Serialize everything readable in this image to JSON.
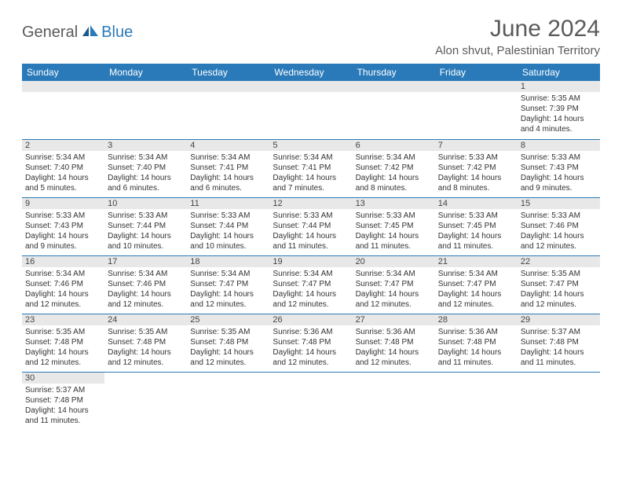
{
  "logo": {
    "general": "General",
    "blue": "Blue"
  },
  "title": "June 2024",
  "location": "Alon shvut, Palestinian Territory",
  "colors": {
    "header_bg": "#2a7ab9",
    "header_text": "#ffffff",
    "num_bar_bg": "#e8e8e8",
    "divider": "#2a7ab9",
    "empty_bg": "#f0f0f0",
    "text": "#333333",
    "title_text": "#5a5a5a"
  },
  "daysOfWeek": [
    "Sunday",
    "Monday",
    "Tuesday",
    "Wednesday",
    "Thursday",
    "Friday",
    "Saturday"
  ],
  "weeks": [
    [
      null,
      null,
      null,
      null,
      null,
      null,
      {
        "n": "1",
        "sr": "Sunrise: 5:35 AM",
        "ss": "Sunset: 7:39 PM",
        "dl": "Daylight: 14 hours and 4 minutes."
      }
    ],
    [
      {
        "n": "2",
        "sr": "Sunrise: 5:34 AM",
        "ss": "Sunset: 7:40 PM",
        "dl": "Daylight: 14 hours and 5 minutes."
      },
      {
        "n": "3",
        "sr": "Sunrise: 5:34 AM",
        "ss": "Sunset: 7:40 PM",
        "dl": "Daylight: 14 hours and 6 minutes."
      },
      {
        "n": "4",
        "sr": "Sunrise: 5:34 AM",
        "ss": "Sunset: 7:41 PM",
        "dl": "Daylight: 14 hours and 6 minutes."
      },
      {
        "n": "5",
        "sr": "Sunrise: 5:34 AM",
        "ss": "Sunset: 7:41 PM",
        "dl": "Daylight: 14 hours and 7 minutes."
      },
      {
        "n": "6",
        "sr": "Sunrise: 5:34 AM",
        "ss": "Sunset: 7:42 PM",
        "dl": "Daylight: 14 hours and 8 minutes."
      },
      {
        "n": "7",
        "sr": "Sunrise: 5:33 AM",
        "ss": "Sunset: 7:42 PM",
        "dl": "Daylight: 14 hours and 8 minutes."
      },
      {
        "n": "8",
        "sr": "Sunrise: 5:33 AM",
        "ss": "Sunset: 7:43 PM",
        "dl": "Daylight: 14 hours and 9 minutes."
      }
    ],
    [
      {
        "n": "9",
        "sr": "Sunrise: 5:33 AM",
        "ss": "Sunset: 7:43 PM",
        "dl": "Daylight: 14 hours and 9 minutes."
      },
      {
        "n": "10",
        "sr": "Sunrise: 5:33 AM",
        "ss": "Sunset: 7:44 PM",
        "dl": "Daylight: 14 hours and 10 minutes."
      },
      {
        "n": "11",
        "sr": "Sunrise: 5:33 AM",
        "ss": "Sunset: 7:44 PM",
        "dl": "Daylight: 14 hours and 10 minutes."
      },
      {
        "n": "12",
        "sr": "Sunrise: 5:33 AM",
        "ss": "Sunset: 7:44 PM",
        "dl": "Daylight: 14 hours and 11 minutes."
      },
      {
        "n": "13",
        "sr": "Sunrise: 5:33 AM",
        "ss": "Sunset: 7:45 PM",
        "dl": "Daylight: 14 hours and 11 minutes."
      },
      {
        "n": "14",
        "sr": "Sunrise: 5:33 AM",
        "ss": "Sunset: 7:45 PM",
        "dl": "Daylight: 14 hours and 11 minutes."
      },
      {
        "n": "15",
        "sr": "Sunrise: 5:33 AM",
        "ss": "Sunset: 7:46 PM",
        "dl": "Daylight: 14 hours and 12 minutes."
      }
    ],
    [
      {
        "n": "16",
        "sr": "Sunrise: 5:34 AM",
        "ss": "Sunset: 7:46 PM",
        "dl": "Daylight: 14 hours and 12 minutes."
      },
      {
        "n": "17",
        "sr": "Sunrise: 5:34 AM",
        "ss": "Sunset: 7:46 PM",
        "dl": "Daylight: 14 hours and 12 minutes."
      },
      {
        "n": "18",
        "sr": "Sunrise: 5:34 AM",
        "ss": "Sunset: 7:47 PM",
        "dl": "Daylight: 14 hours and 12 minutes."
      },
      {
        "n": "19",
        "sr": "Sunrise: 5:34 AM",
        "ss": "Sunset: 7:47 PM",
        "dl": "Daylight: 14 hours and 12 minutes."
      },
      {
        "n": "20",
        "sr": "Sunrise: 5:34 AM",
        "ss": "Sunset: 7:47 PM",
        "dl": "Daylight: 14 hours and 12 minutes."
      },
      {
        "n": "21",
        "sr": "Sunrise: 5:34 AM",
        "ss": "Sunset: 7:47 PM",
        "dl": "Daylight: 14 hours and 12 minutes."
      },
      {
        "n": "22",
        "sr": "Sunrise: 5:35 AM",
        "ss": "Sunset: 7:47 PM",
        "dl": "Daylight: 14 hours and 12 minutes."
      }
    ],
    [
      {
        "n": "23",
        "sr": "Sunrise: 5:35 AM",
        "ss": "Sunset: 7:48 PM",
        "dl": "Daylight: 14 hours and 12 minutes."
      },
      {
        "n": "24",
        "sr": "Sunrise: 5:35 AM",
        "ss": "Sunset: 7:48 PM",
        "dl": "Daylight: 14 hours and 12 minutes."
      },
      {
        "n": "25",
        "sr": "Sunrise: 5:35 AM",
        "ss": "Sunset: 7:48 PM",
        "dl": "Daylight: 14 hours and 12 minutes."
      },
      {
        "n": "26",
        "sr": "Sunrise: 5:36 AM",
        "ss": "Sunset: 7:48 PM",
        "dl": "Daylight: 14 hours and 12 minutes."
      },
      {
        "n": "27",
        "sr": "Sunrise: 5:36 AM",
        "ss": "Sunset: 7:48 PM",
        "dl": "Daylight: 14 hours and 12 minutes."
      },
      {
        "n": "28",
        "sr": "Sunrise: 5:36 AM",
        "ss": "Sunset: 7:48 PM",
        "dl": "Daylight: 14 hours and 11 minutes."
      },
      {
        "n": "29",
        "sr": "Sunrise: 5:37 AM",
        "ss": "Sunset: 7:48 PM",
        "dl": "Daylight: 14 hours and 11 minutes."
      }
    ],
    [
      {
        "n": "30",
        "sr": "Sunrise: 5:37 AM",
        "ss": "Sunset: 7:48 PM",
        "dl": "Daylight: 14 hours and 11 minutes."
      },
      null,
      null,
      null,
      null,
      null,
      null
    ]
  ]
}
